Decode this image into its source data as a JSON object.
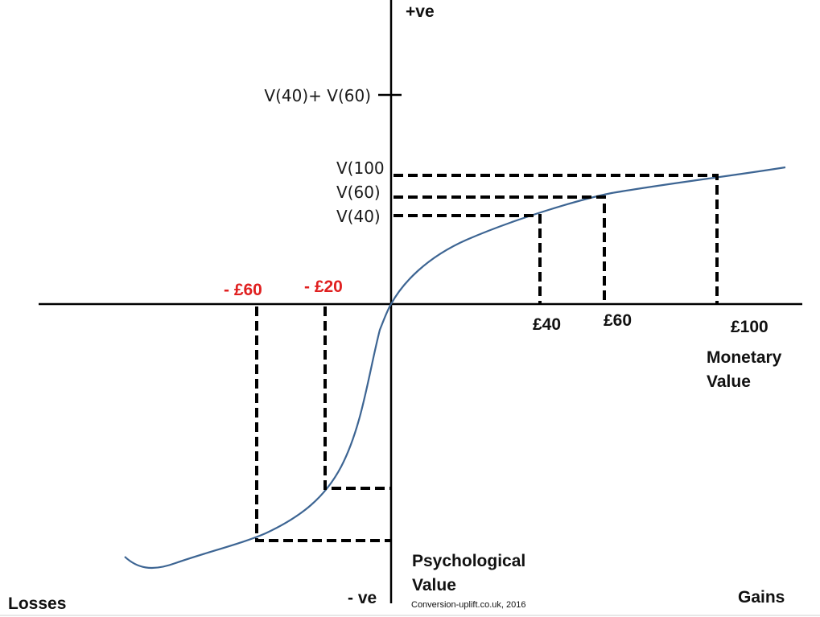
{
  "axes": {
    "y_positive": "+ve",
    "y_negative": "- ve",
    "y_label_line1": "Psychological",
    "y_label_line2": "Value",
    "x_label_line1": "Monetary",
    "x_label_line2": "Value",
    "left_label": "Losses",
    "right_label": "Gains"
  },
  "value_ticks": {
    "v40_plus_v60": "V(40)+ V(60)",
    "v100": "V(100",
    "v60": "V(60)",
    "v40": "V(40)"
  },
  "gains": {
    "g40": "£40",
    "g60": "£60",
    "g100": "£100"
  },
  "losses": {
    "l60": "- £60",
    "l20": "- £20"
  },
  "credit": "Conversion-uplift.co.uk, 2016",
  "colors": {
    "curve": "#3d6593",
    "loss_labels": "#e02020",
    "axes": "#000000"
  }
}
